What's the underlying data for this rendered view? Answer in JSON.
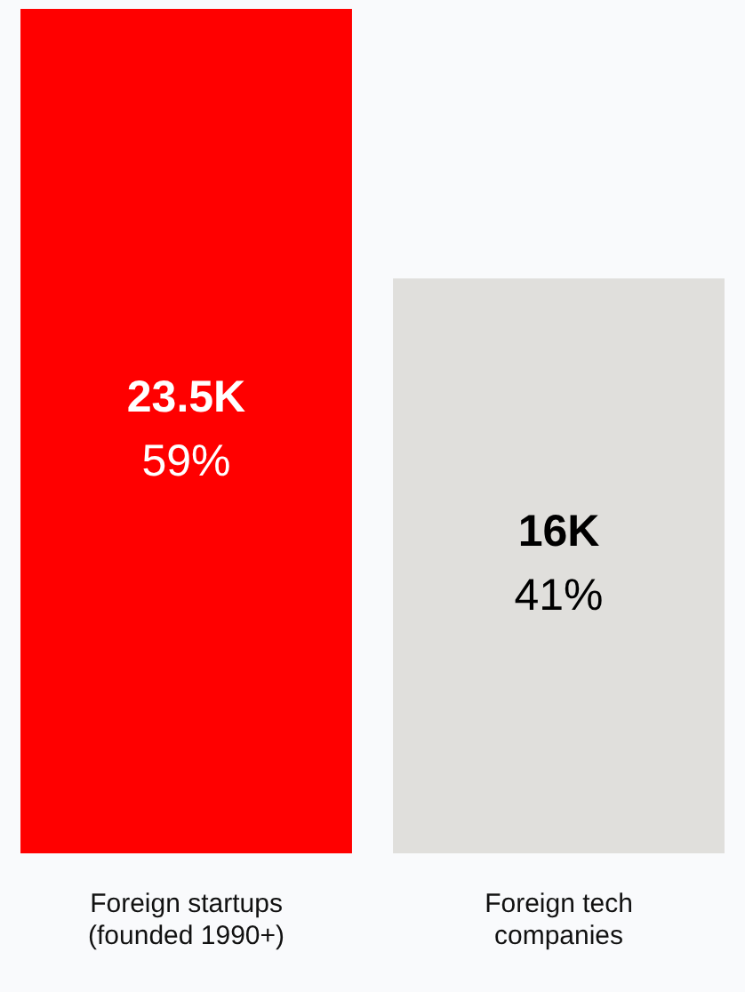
{
  "chart_data": {
    "type": "bar",
    "categories": [
      "Foreign startups (founded 1990+)",
      "Foreign tech companies"
    ],
    "values": [
      23500,
      16000
    ],
    "colors": [
      "#ff0000",
      "#e0dfdc"
    ],
    "value_labels": [
      "23.5K\n59%",
      "16K\n41%"
    ],
    "legend": false,
    "grid": false
  }
}
